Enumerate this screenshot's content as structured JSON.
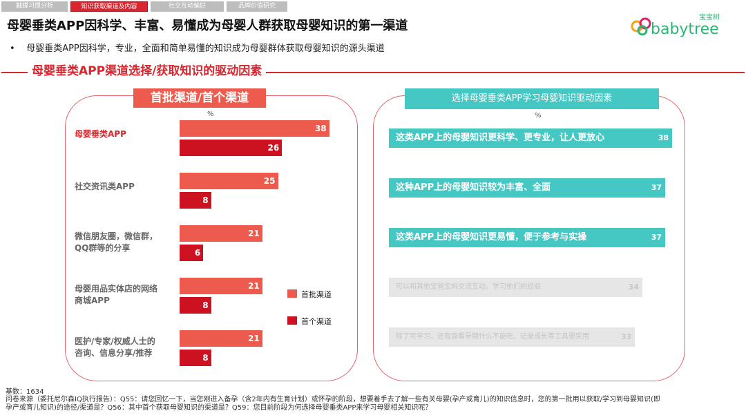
{
  "tabs": [
    "触媒习惯分析",
    "知识获取渠道及内容",
    "社交互动偏好",
    "品牌价值研究"
  ],
  "active_tab": 1,
  "title": "母婴垂类APP因科学、丰富、易懂成为母婴人群获取母婴知识的第一渠道",
  "logo": {
    "cn": "宝宝树",
    "en": "babytree"
  },
  "bullet": "母婴垂类APP因科学，专业，全面和简单易懂的知识成为母婴群体获取母婴知识的源头渠道",
  "section_title": "母婴垂类APP渠道选择/获取知识的驱动因素",
  "colors": {
    "red": "#d9262e",
    "first": "#ec5b4d",
    "head": "#cc1220",
    "teal": "#45c7c4",
    "faded": "#e6e6e6"
  },
  "chart_data": [
    {
      "type": "bar",
      "orientation": "horizontal",
      "title": "首批渠道/首个渠道",
      "unit": "%",
      "categories": [
        "母婴垂类APP",
        "社交资讯类APP",
        "微信朋友圈，微信群，QQ群等的分享",
        "母婴用品实体店的网络商城APP",
        "医护/专家/权威人士的咨询、信息分享/推荐"
      ],
      "category_lines": [
        [
          "母婴垂类APP"
        ],
        [
          "社交资讯类APP"
        ],
        [
          "微信朋友圈，微信群，",
          "QQ群等的分享"
        ],
        [
          "母婴用品实体店的网络",
          "商城APP"
        ],
        [
          "医护/专家/权威人士的",
          "咨询、信息分享/推荐"
        ]
      ],
      "series": [
        {
          "name": "首批渠道",
          "values": [
            38,
            25,
            21,
            21,
            21
          ]
        },
        {
          "name": "首个渠道",
          "values": [
            26,
            8,
            6,
            8,
            8
          ]
        }
      ],
      "legend_position": "right"
    },
    {
      "type": "bar",
      "orientation": "horizontal",
      "title": "选择母婴垂类APP学习母婴知识驱动因素",
      "unit": "%",
      "categories": [
        "这类APP上的母婴知识更科学、更专业，让人更放心",
        "这种APP上的母婴知识较为丰富、全面",
        "这类APP上的母婴知识更易懂，便于参考与实操",
        "可以和其他宝爸宝妈交流互动，学习他们的经验",
        "除了可学习，还有查看孕期什么不能吃、记录成长等工具很实用"
      ],
      "values": [
        38,
        37,
        37,
        34,
        33
      ],
      "highlighted": [
        true,
        true,
        true,
        false,
        false
      ]
    }
  ],
  "footer": {
    "base": "基数：1634",
    "source": "问卷来源（委托尼尔森IQ执行报告）：Q55：请您回忆一下，当您刚进入备孕（含2年内有生育计划）或怀孕的阶段，想要着手去了解一些有关母婴(孕产或育儿)的知识信息时，您的第一批用以获取/学习到母婴知识(即孕产或育儿知识)的途径/渠道是？Q56：其中首个获取母婴知识的渠道是？Q59：您目前阶段为何选择母婴垂类APP来学习母婴相关知识呢？"
  }
}
